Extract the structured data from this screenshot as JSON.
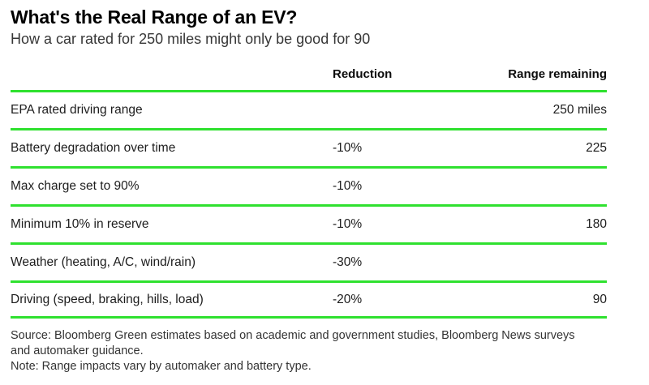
{
  "title": "What's the Real Range of an EV?",
  "subtitle": "How a car rated for 250 miles might only be good for 90",
  "accent_color": "#2fe12f",
  "chart_data": {
    "type": "table",
    "title": "What's the Real Range of an EV?",
    "subtitle": "How a car rated for 250 miles might only be good for 90",
    "columns": [
      "",
      "Reduction",
      "Range remaining"
    ],
    "rows": [
      {
        "label": "EPA rated driving range",
        "reduction": "",
        "remaining": "250 miles"
      },
      {
        "label": "Battery degradation over time",
        "reduction": "-10%",
        "remaining": "225"
      },
      {
        "label": "Max charge set to 90%",
        "reduction": "-10%",
        "remaining": ""
      },
      {
        "label": "Minimum 10% in reserve",
        "reduction": "-10%",
        "remaining": "180"
      },
      {
        "label": "Weather (heating, A/C, wind/rain)",
        "reduction": "-30%",
        "remaining": ""
      },
      {
        "label": "Driving (speed, braking, hills, load)",
        "reduction": "-20%",
        "remaining": "90"
      }
    ],
    "reduction_pct": [
      null,
      -10,
      -10,
      -10,
      -30,
      -20
    ],
    "range_remaining_miles": [
      250,
      225,
      null,
      180,
      null,
      90
    ]
  },
  "footer": {
    "source": "Source: Bloomberg Green estimates based on academic and government studies, Bloomberg News surveys and automaker guidance.",
    "note": "Note: Range impacts vary by automaker and battery type."
  }
}
